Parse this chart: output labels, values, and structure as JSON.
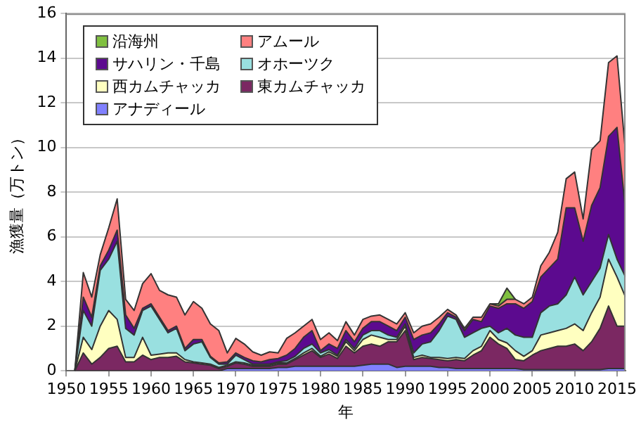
{
  "chart_data": {
    "type": "area",
    "stacked": true,
    "xlabel": "年",
    "ylabel": "漁獲量（万トン）",
    "x": [
      1951,
      1952,
      1953,
      1954,
      1955,
      1956,
      1957,
      1958,
      1959,
      1960,
      1961,
      1962,
      1963,
      1964,
      1965,
      1966,
      1967,
      1968,
      1969,
      1970,
      1971,
      1972,
      1973,
      1974,
      1975,
      1976,
      1977,
      1978,
      1979,
      1980,
      1981,
      1982,
      1983,
      1984,
      1985,
      1986,
      1987,
      1988,
      1989,
      1990,
      1991,
      1992,
      1993,
      1994,
      1995,
      1996,
      1997,
      1998,
      1999,
      2000,
      2001,
      2002,
      2003,
      2004,
      2005,
      2006,
      2007,
      2008,
      2009,
      2010,
      2011,
      2012,
      2013,
      2014,
      2015,
      2016
    ],
    "xlim": [
      1950,
      2016
    ],
    "xticks": [
      1950,
      1955,
      1960,
      1965,
      1970,
      1975,
      1980,
      1985,
      1990,
      1995,
      2000,
      2005,
      2010,
      2015
    ],
    "ylim": [
      0,
      16
    ],
    "yticks": [
      0,
      2,
      4,
      6,
      8,
      10,
      12,
      14,
      16
    ],
    "grid": "y",
    "legend": "top left",
    "marker": "none",
    "series": [
      {
        "name": "アナディール",
        "color": "#8080ff",
        "values": [
          0,
          0,
          0,
          0,
          0,
          0,
          0,
          0,
          0,
          0,
          0,
          0,
          0,
          0,
          0,
          0,
          0,
          0,
          0.1,
          0.1,
          0.1,
          0.1,
          0.1,
          0.1,
          0.15,
          0.15,
          0.2,
          0.2,
          0.2,
          0.2,
          0.2,
          0.2,
          0.2,
          0.2,
          0.25,
          0.3,
          0.3,
          0.3,
          0.15,
          0.2,
          0.2,
          0.2,
          0.2,
          0.15,
          0.15,
          0.1,
          0.1,
          0.1,
          0.1,
          0.1,
          0.1,
          0.1,
          0.1,
          0.05,
          0.05,
          0.05,
          0.05,
          0.05,
          0.05,
          0.05,
          0.05,
          0.05,
          0.05,
          0.1,
          0.1,
          0.1
        ]
      },
      {
        "name": "東カムチャッカ",
        "color": "#7b2862",
        "values": [
          0,
          0.8,
          0.3,
          0.6,
          1.0,
          1.1,
          0.4,
          0.4,
          0.7,
          0.5,
          0.6,
          0.6,
          0.65,
          0.4,
          0.35,
          0.3,
          0.25,
          0.1,
          0.1,
          0.25,
          0.2,
          0.1,
          0.1,
          0.1,
          0.15,
          0.15,
          0.3,
          0.5,
          0.7,
          0.4,
          0.55,
          0.35,
          0.9,
          0.6,
          0.85,
          0.9,
          0.8,
          1.0,
          1.15,
          1.6,
          0.3,
          0.4,
          0.35,
          0.35,
          0.3,
          0.4,
          0.35,
          0.6,
          0.8,
          1.4,
          1.1,
          0.9,
          0.4,
          0.4,
          0.65,
          0.85,
          0.95,
          1.05,
          1.05,
          1.15,
          0.85,
          1.25,
          1.85,
          2.8,
          1.9,
          1.9
        ]
      },
      {
        "name": "西カムチャッカ",
        "color": "#ffffc0",
        "values": [
          0,
          0.7,
          0.65,
          1.4,
          1.7,
          1.2,
          0.2,
          0.2,
          0.8,
          0.2,
          0.15,
          0.2,
          0.15,
          0.1,
          0.05,
          0.05,
          0.05,
          0.05,
          0.05,
          0.05,
          0.05,
          0.05,
          0.05,
          0.05,
          0.05,
          0.05,
          0.05,
          0.1,
          0.1,
          0.05,
          0.1,
          0.1,
          0.2,
          0.1,
          0.3,
          0.4,
          0.4,
          0.1,
          0.1,
          0.2,
          0.1,
          0.1,
          0.05,
          0.1,
          0.1,
          0.1,
          0.1,
          0.2,
          0.2,
          0.3,
          0.2,
          0.25,
          0.4,
          0.2,
          0.2,
          0.7,
          0.7,
          0.7,
          0.8,
          0.9,
          0.9,
          1.3,
          1.4,
          2.1,
          2.2,
          1.3
        ]
      },
      {
        "name": "オホーツク",
        "color": "#99e0e0",
        "values": [
          0,
          1.2,
          1.05,
          2.5,
          2.3,
          3.5,
          1.3,
          1.0,
          1.2,
          2.2,
          1.55,
          0.9,
          1.1,
          0.4,
          0.8,
          0.95,
          0.3,
          0.15,
          0.05,
          0.3,
          0.15,
          0.05,
          0.05,
          0.05,
          0.05,
          0.1,
          0.1,
          0.2,
          0.2,
          0.15,
          0.1,
          0.05,
          0.1,
          0.1,
          0.2,
          0.2,
          0.3,
          0.2,
          0.1,
          0.1,
          0.2,
          0.5,
          0.7,
          1.2,
          1.9,
          1.7,
          0.95,
          0.8,
          0.8,
          0.2,
          0.3,
          0.65,
          0.7,
          0.85,
          0.6,
          1.0,
          1.2,
          1.2,
          1.5,
          2.1,
          1.6,
          1.4,
          1.3,
          1.1,
          0.8,
          0.9
        ]
      },
      {
        "name": "サハリン・千島",
        "color": "#5c0a8f",
        "values": [
          0,
          0.6,
          0.4,
          0.2,
          0.4,
          0.5,
          0.6,
          0.3,
          0.1,
          0.1,
          0.1,
          0.1,
          0.1,
          0.1,
          0.2,
          0.1,
          0.05,
          0.05,
          0.1,
          0.1,
          0.1,
          0.15,
          0.1,
          0.2,
          0.15,
          0.25,
          0.35,
          0.5,
          0.6,
          0.1,
          0.25,
          0.3,
          0.4,
          0.3,
          0.3,
          0.4,
          0.4,
          0.4,
          0.3,
          0.3,
          0.6,
          0.4,
          0.4,
          0.3,
          0.15,
          0.1,
          0.3,
          0.6,
          0.3,
          0.9,
          1.1,
          1.1,
          1.4,
          1.3,
          1.6,
          1.6,
          1.7,
          2.0,
          3.9,
          3.1,
          2.4,
          3.4,
          3.6,
          4.4,
          5.9,
          3.0
        ]
      },
      {
        "name": "アムール",
        "color": "#ff8080",
        "values": [
          0,
          1.1,
          0.9,
          0.5,
          1.0,
          1.4,
          0.7,
          0.8,
          1.1,
          1.35,
          1.2,
          1.6,
          1.3,
          1.5,
          1.7,
          1.4,
          1.45,
          1.45,
          0.4,
          0.65,
          0.6,
          0.4,
          0.3,
          0.35,
          0.25,
          0.75,
          0.7,
          0.5,
          0.5,
          0.5,
          0.5,
          0.35,
          0.4,
          0.3,
          0.4,
          0.25,
          0.3,
          0.3,
          0.3,
          0.2,
          0.3,
          0.4,
          0.4,
          0.3,
          0.15,
          0.1,
          0.1,
          0.1,
          0.2,
          0.1,
          0.1,
          0.2,
          0.2,
          0.2,
          0.2,
          0.5,
          0.7,
          1.2,
          1.3,
          1.6,
          1.0,
          2.5,
          2.1,
          3.3,
          3.2,
          2.6
        ]
      },
      {
        "name": "沿海州",
        "color": "#80c040",
        "values": [
          null,
          null,
          null,
          null,
          null,
          null,
          null,
          null,
          null,
          null,
          null,
          null,
          null,
          null,
          null,
          null,
          null,
          null,
          null,
          null,
          null,
          null,
          null,
          null,
          null,
          null,
          null,
          null,
          null,
          null,
          null,
          null,
          null,
          null,
          null,
          null,
          null,
          null,
          null,
          null,
          null,
          null,
          null,
          null,
          null,
          null,
          null,
          null,
          null,
          0,
          0.1,
          0.5,
          0,
          null,
          null,
          null,
          null,
          null,
          null,
          null,
          null,
          null,
          null,
          null,
          null,
          null
        ]
      }
    ]
  }
}
